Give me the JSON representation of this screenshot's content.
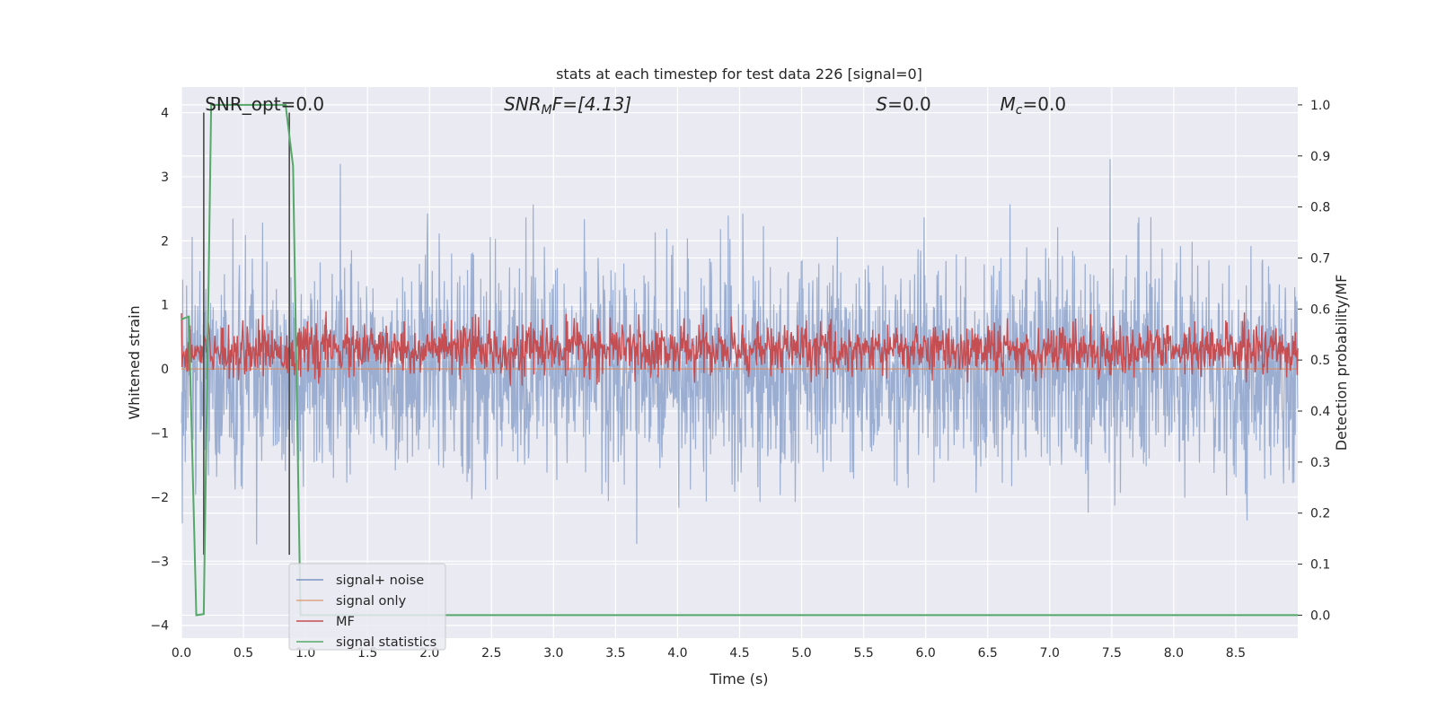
{
  "chart_data": {
    "type": "line",
    "title": "stats at each timestep for test data 226 [signal=0]",
    "xlabel": "Time (s)",
    "ylabel_left": "Whitened strain",
    "ylabel_right": "Detection probability/MF",
    "xlim": [
      0.0,
      9.0
    ],
    "ylim_left": [
      -4.2,
      4.4
    ],
    "ylim_right": [
      -0.045,
      1.035
    ],
    "x_ticks": [
      "0.0",
      "0.5",
      "1.0",
      "1.5",
      "2.0",
      "2.5",
      "3.0",
      "3.5",
      "4.0",
      "4.5",
      "5.0",
      "5.5",
      "6.0",
      "6.5",
      "7.0",
      "7.5",
      "8.0",
      "8.5"
    ],
    "y_ticks_left": [
      "4",
      "3",
      "2",
      "1",
      "0",
      "−1",
      "−2",
      "−3",
      "−4"
    ],
    "y_ticks_right": [
      "1.0",
      "0.9",
      "0.8",
      "0.7",
      "0.6",
      "0.5",
      "0.4",
      "0.3",
      "0.2",
      "0.1",
      "0.0"
    ],
    "grid": true,
    "legend_placement": "lower-left",
    "annotations": [
      {
        "main": "SNR_opt=0.0",
        "x": 0.19
      },
      {
        "main": "SNR",
        "sub": "M",
        "rest": "F=[4.13]",
        "italic": true,
        "x": 2.6
      },
      {
        "main": "S",
        "rest": "=0.0",
        "italic": true,
        "x": 5.6
      },
      {
        "main": "M",
        "sub": "c",
        "rest": "=0.0",
        "italic": true,
        "x": 6.6
      }
    ],
    "vertical_markers_x": [
      0.18,
      0.87
    ],
    "series": [
      {
        "name": "signal+ noise",
        "color": "#4c72b0",
        "axis": "left",
        "description_range": [
          -3.2,
          4.0
        ],
        "noise_std": 0.85,
        "duration": 9.0
      },
      {
        "name": "signal only",
        "color": "#dd8452",
        "axis": "left",
        "values_constant": 0.0
      },
      {
        "name": "MF",
        "color": "#c44e52",
        "axis": "right",
        "mean": 0.52,
        "range": [
          0.45,
          0.61
        ]
      },
      {
        "name": "signal statistics",
        "color": "#55a868",
        "axis": "right",
        "x": [
          0.0,
          0.06,
          0.12,
          0.18,
          0.24,
          0.32,
          0.36,
          0.42,
          0.48,
          0.54,
          0.6,
          0.66,
          0.72,
          0.78,
          0.84,
          0.9,
          0.96,
          1.02,
          1.1,
          1.2,
          1.5,
          2.0,
          3.0,
          4.0,
          5.0,
          6.0,
          7.0,
          8.0,
          9.0
        ],
        "values": [
          0.58,
          0.585,
          0.0,
          0.002,
          1.0,
          1.0,
          1.0,
          1.0,
          1.0,
          1.0,
          1.0,
          1.0,
          1.0,
          1.0,
          1.0,
          0.88,
          0.0,
          0.0,
          0.0,
          0.0,
          0.0,
          0.0,
          0.0,
          0.0,
          0.0,
          0.0,
          0.0,
          0.0,
          0.0
        ]
      }
    ]
  }
}
